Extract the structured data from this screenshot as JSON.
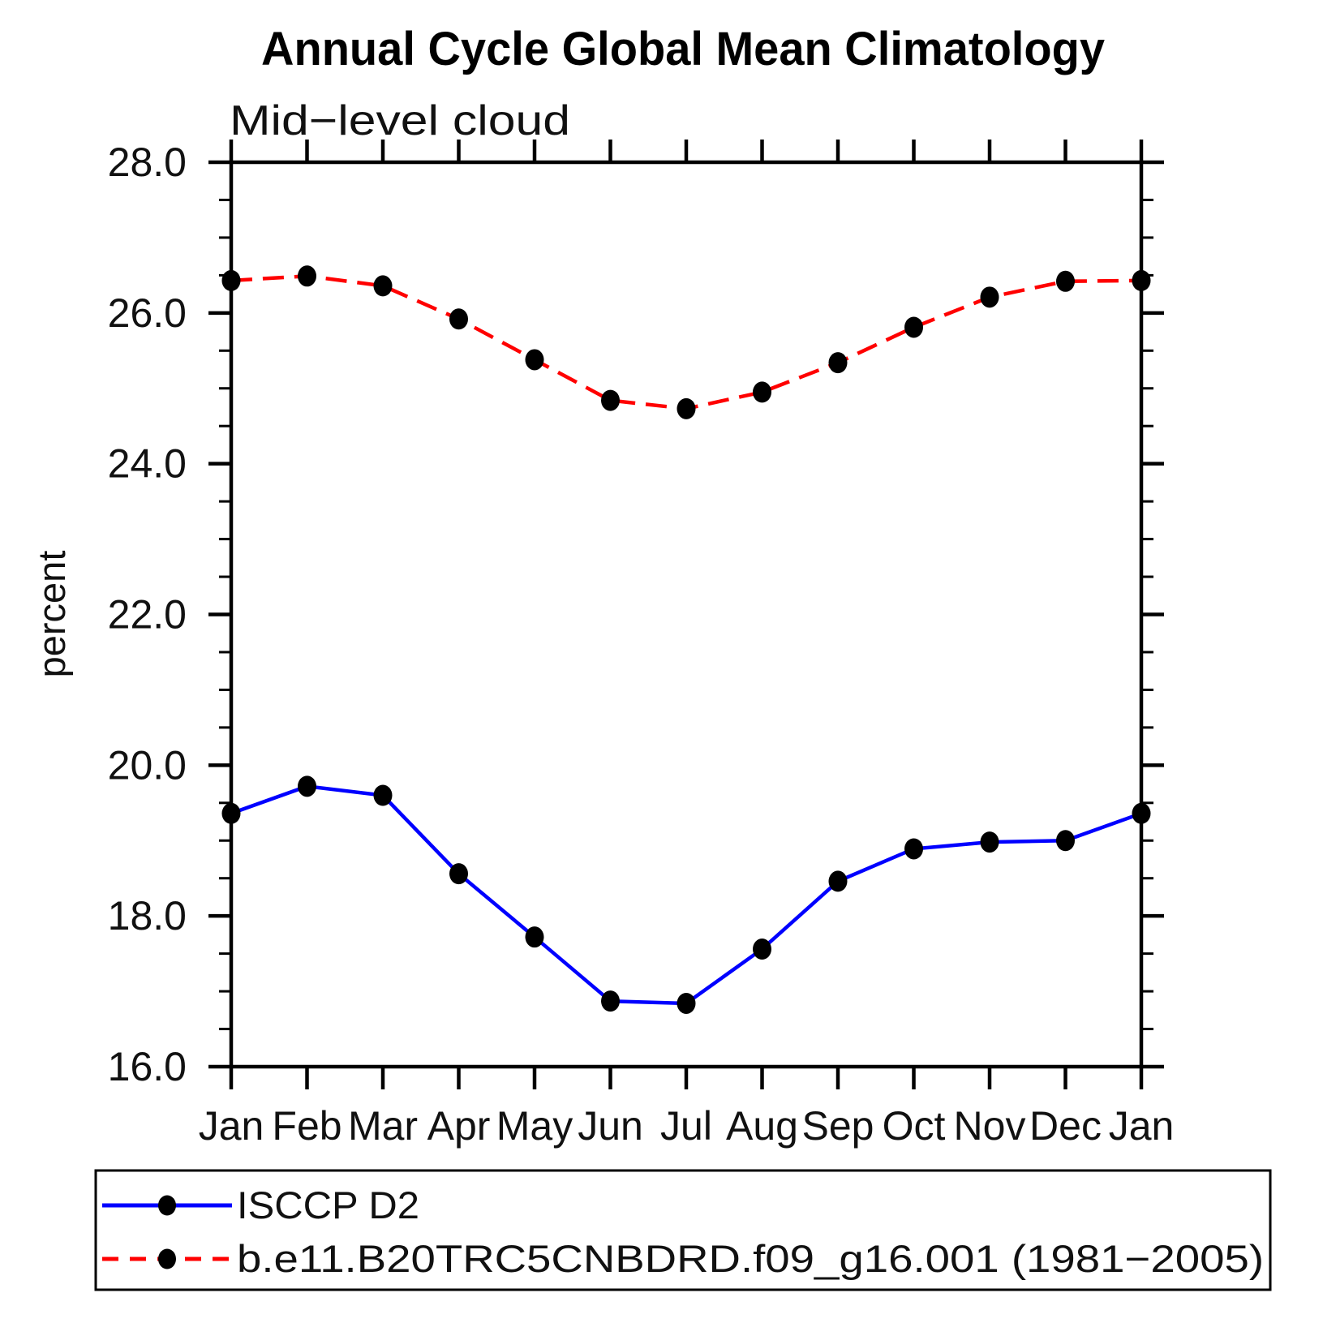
{
  "chart_data": {
    "type": "line",
    "title": "Annual Cycle Global Mean Climatology",
    "subtitle": "Mid−level cloud",
    "xlabel": "",
    "ylabel": "percent",
    "categories": [
      "Jan",
      "Feb",
      "Mar",
      "Apr",
      "May",
      "Jun",
      "Jul",
      "Aug",
      "Sep",
      "Oct",
      "Nov",
      "Dec",
      "Jan"
    ],
    "ylim": [
      16.0,
      28.0
    ],
    "y_ticks_major": [
      16.0,
      18.0,
      20.0,
      22.0,
      24.0,
      26.0,
      28.0
    ],
    "y_tick_labels": [
      "16.0",
      "18.0",
      "20.0",
      "22.0",
      "24.0",
      "26.0",
      "28.0"
    ],
    "y_minor_step": 0.5,
    "grid": false,
    "legend_position": "bottom",
    "marker": {
      "shape": "dot",
      "color": "#000000"
    },
    "series": [
      {
        "name": "ISCCP D2",
        "color": "#0000ff",
        "line_style": "solid",
        "values": [
          19.36,
          19.72,
          19.6,
          18.56,
          17.72,
          16.87,
          16.84,
          17.56,
          18.46,
          18.89,
          18.98,
          19.0,
          19.36
        ]
      },
      {
        "name": "b.e11.B20TRC5CNBDRD.f09_g16.001 (1981−2005)",
        "color": "#ff0000",
        "line_style": "dashed",
        "values": [
          26.43,
          26.49,
          26.36,
          25.92,
          25.38,
          24.84,
          24.73,
          24.95,
          25.34,
          25.81,
          26.21,
          26.42,
          26.43
        ]
      }
    ]
  }
}
